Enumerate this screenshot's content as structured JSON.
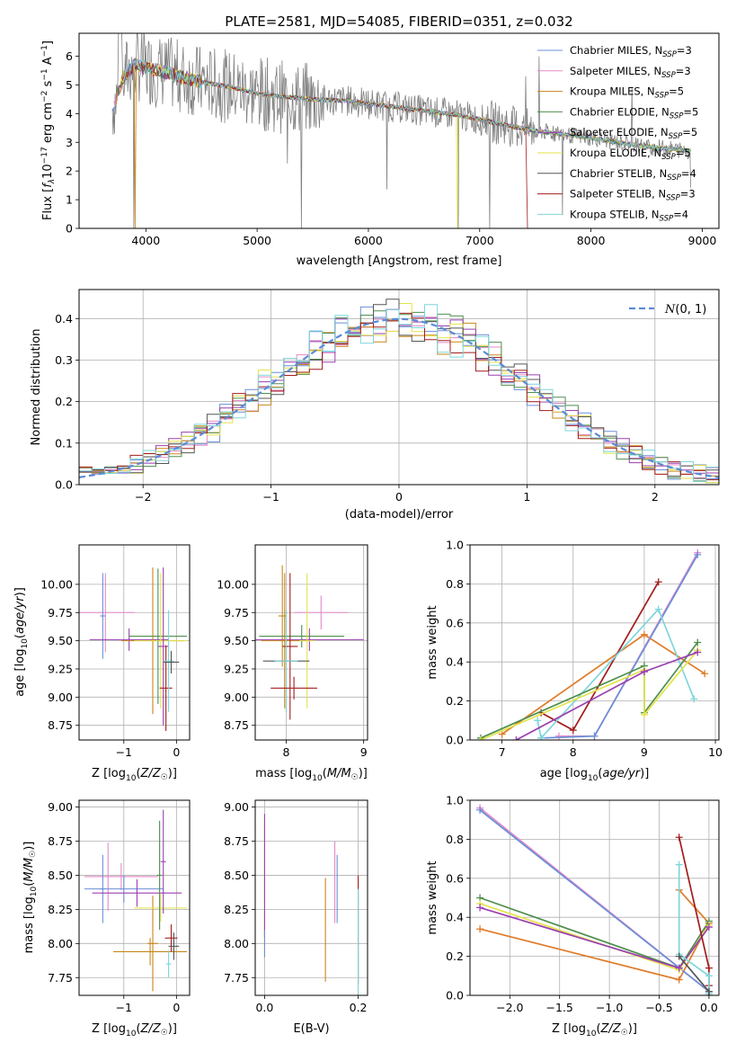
{
  "figure_title": "PLATE=2581, MJD=54085, FIBERID=0351, z=0.032",
  "colors": {
    "chabrier_miles": "#6a8fd8",
    "salpeter_miles": "#e58ac8",
    "kroupa_miles": "#c8861a",
    "chabrier_elodie": "#4f8f4f",
    "salpeter_elodie": "#9b3fb2",
    "kroupa_elodie": "#e3e34a",
    "chabrier_stelib": "#555555",
    "salpeter_stelib": "#a31c1c",
    "kroupa_stelib": "#7ed6dc",
    "data": "#808080",
    "normal": "#5b8bd6",
    "orange": "#e07b28",
    "lime": "#c4e84a"
  },
  "chart_data": [
    {
      "id": "spectrum",
      "type": "line",
      "xlabel": "wavelength [Angstrom, rest frame]",
      "ylabel": "Flux [f_λ 10^-17 erg cm^-2 s^-1 A^-1]",
      "xlim": [
        3400,
        9150
      ],
      "ylim": [
        0,
        6.8
      ],
      "xticks": [
        4000,
        5000,
        6000,
        7000,
        8000,
        9000
      ],
      "yticks": [
        0,
        1,
        2,
        3,
        4,
        5,
        6
      ],
      "grid": false,
      "legend_position": "top-right",
      "legend": [
        {
          "label": "Chabrier MILES, N_SSP=3",
          "color_key": "chabrier_miles"
        },
        {
          "label": "Salpeter MILES, N_SSP=3",
          "color_key": "salpeter_miles"
        },
        {
          "label": "Kroupa MILES, N_SSP=5",
          "color_key": "kroupa_miles"
        },
        {
          "label": "Chabrier ELODIE, N_SSP=5",
          "color_key": "chabrier_elodie"
        },
        {
          "label": "Salpeter ELODIE, N_SSP=5",
          "color_key": "salpeter_elodie"
        },
        {
          "label": "Kroupa ELODIE, N_SSP=5",
          "color_key": "kroupa_elodie"
        },
        {
          "label": "Chabrier STELIB, N_SSP=4",
          "color_key": "chabrier_stelib"
        },
        {
          "label": "Salpeter STELIB, N_SSP=3",
          "color_key": "salpeter_stelib"
        },
        {
          "label": "Kroupa STELIB, N_SSP=4",
          "color_key": "kroupa_stelib"
        }
      ],
      "model_continuum": {
        "x": [
          3700,
          3800,
          3900,
          4000,
          4200,
          4500,
          4800,
          5000,
          5200,
          5500,
          5800,
          6000,
          6300,
          6500,
          6800,
          7000,
          7300,
          7500,
          7800,
          8000,
          8500,
          8900
        ],
        "y": [
          4.2,
          5.3,
          5.7,
          5.6,
          5.4,
          5.1,
          4.9,
          4.7,
          4.6,
          4.5,
          4.45,
          4.35,
          4.2,
          4.1,
          3.95,
          3.8,
          3.55,
          3.4,
          3.25,
          3.15,
          2.85,
          2.7
        ]
      }
    },
    {
      "id": "residuals",
      "type": "line",
      "xlabel": "(data-model)/error",
      "ylabel": "Normed distribution",
      "xlim": [
        -2.5,
        2.5
      ],
      "ylim": [
        0,
        0.47
      ],
      "xticks": [
        -2,
        -1,
        0,
        1,
        2
      ],
      "yticks": [
        0.0,
        0.1,
        0.2,
        0.3,
        0.4
      ],
      "grid": true,
      "legend_position": "top-right",
      "legend": [
        {
          "label": "N(0,1)",
          "color_key": "normal"
        }
      ],
      "hist_bins": 50,
      "hist_range": [
        -2.5,
        2.5
      ]
    },
    {
      "id": "age_vs_z",
      "type": "scatter",
      "xlabel": "Z [log10(Z/Z☉)]",
      "ylabel": "age [log10(age/yr)]",
      "xlim": [
        -1.85,
        0.25
      ],
      "ylim": [
        8.62,
        10.35
      ],
      "xticks": [
        -1,
        0
      ],
      "yticks": [
        8.75,
        9.0,
        9.25,
        9.5,
        9.75,
        10.0
      ],
      "grid": true,
      "points": [
        {
          "x": -1.35,
          "y": 9.75,
          "xerr": 0.55,
          "yerr": 0.35,
          "color_key": "salpeter_miles"
        },
        {
          "x": -1.4,
          "y": 9.72,
          "xerr": 0.05,
          "yerr": 0.38,
          "color_key": "chabrier_miles"
        },
        {
          "x": -0.9,
          "y": 9.51,
          "xerr": 0.75,
          "yerr": 0.1,
          "color_key": "salpeter_elodie"
        },
        {
          "x": -0.45,
          "y": 9.5,
          "xerr": 0.6,
          "yerr": 0.65,
          "color_key": "kroupa_miles"
        },
        {
          "x": -0.35,
          "y": 9.54,
          "xerr": 0.55,
          "yerr": 0.6,
          "color_key": "chabrier_elodie"
        },
        {
          "x": -0.3,
          "y": 9.5,
          "xerr": 0.5,
          "yerr": 0.6,
          "color_key": "kroupa_elodie"
        },
        {
          "x": -0.25,
          "y": 9.45,
          "xerr": 0.1,
          "yerr": 0.7,
          "color_key": "salpeter_elodie"
        },
        {
          "x": -0.2,
          "y": 9.08,
          "xerr": 0.12,
          "yerr": 0.38,
          "color_key": "salpeter_stelib"
        },
        {
          "x": -0.15,
          "y": 9.32,
          "xerr": 0.1,
          "yerr": 0.45,
          "color_key": "kroupa_stelib"
        },
        {
          "x": -0.1,
          "y": 9.31,
          "xerr": 0.15,
          "yerr": 0.1,
          "color_key": "chabrier_stelib"
        }
      ]
    },
    {
      "id": "age_vs_mass",
      "type": "scatter",
      "xlabel": "mass [log10(M/M☉)]",
      "ylabel": "",
      "xlim": [
        7.6,
        9.05
      ],
      "ylim": [
        8.62,
        10.35
      ],
      "xticks": [
        8,
        9
      ],
      "yticks": [
        8.75,
        9.0,
        9.25,
        9.5,
        9.75,
        10.0
      ],
      "grid": true,
      "points": [
        {
          "x": 8.45,
          "y": 9.75,
          "xerr": 0.35,
          "yerr": 0.15,
          "color_key": "salpeter_miles"
        },
        {
          "x": 7.95,
          "y": 9.72,
          "xerr": 0.05,
          "yerr": 0.45,
          "color_key": "kroupa_miles"
        },
        {
          "x": 8.3,
          "y": 9.51,
          "xerr": 0.7,
          "yerr": 0.1,
          "color_key": "salpeter_elodie"
        },
        {
          "x": 7.98,
          "y": 9.5,
          "xerr": 0.3,
          "yerr": 0.6,
          "color_key": "kroupa_miles"
        },
        {
          "x": 8.2,
          "y": 9.54,
          "xerr": 0.55,
          "yerr": 0.1,
          "color_key": "chabrier_elodie"
        },
        {
          "x": 8.27,
          "y": 9.5,
          "xerr": 0.1,
          "yerr": 0.6,
          "color_key": "kroupa_elodie"
        },
        {
          "x": 8.05,
          "y": 9.45,
          "xerr": 0.1,
          "yerr": 0.65,
          "color_key": "salpeter_stelib"
        },
        {
          "x": 8.0,
          "y": 9.32,
          "xerr": 0.3,
          "yerr": 0.45,
          "color_key": "chabrier_stelib"
        },
        {
          "x": 8.0,
          "y": 9.32,
          "xerr": 0.15,
          "yerr": 0.45,
          "color_key": "kroupa_stelib"
        },
        {
          "x": 8.1,
          "y": 9.08,
          "xerr": 0.3,
          "yerr": 0.1,
          "color_key": "salpeter_stelib"
        }
      ]
    },
    {
      "id": "weight_vs_age",
      "type": "line",
      "xlabel": "age [log10(age/yr)]",
      "ylabel": "mass weight",
      "xlim": [
        6.55,
        10.05
      ],
      "ylim": [
        0,
        1.0
      ],
      "xticks": [
        7,
        8,
        9,
        10
      ],
      "yticks": [
        0.0,
        0.2,
        0.4,
        0.6,
        0.8,
        1.0
      ],
      "grid": true,
      "series": [
        {
          "color_key": "orange",
          "x": [
            7.0,
            9.0,
            9.85
          ],
          "y": [
            0.03,
            0.54,
            0.34
          ]
        },
        {
          "color_key": "salpeter_miles",
          "x": [
            7.8,
            8.3,
            9.75
          ],
          "y": [
            0.02,
            0.02,
            0.96
          ]
        },
        {
          "color_key": "chabrier_miles",
          "x": [
            7.55,
            8.3,
            9.75
          ],
          "y": [
            0.01,
            0.02,
            0.95
          ]
        },
        {
          "color_key": "salpeter_stelib",
          "x": [
            7.55,
            8.0,
            9.2
          ],
          "y": [
            0.14,
            0.05,
            0.81
          ]
        },
        {
          "color_key": "kroupa_stelib",
          "x": [
            7.5,
            7.55,
            9.2,
            9.7
          ],
          "y": [
            0.1,
            0.01,
            0.67,
            0.21
          ]
        },
        {
          "color_key": "chabrier_elodie",
          "x": [
            6.7,
            9.0,
            9.0,
            9.75
          ],
          "y": [
            0.01,
            0.38,
            0.14,
            0.5
          ]
        },
        {
          "color_key": "kroupa_elodie",
          "x": [
            6.7,
            9.0,
            9.0,
            9.75
          ],
          "y": [
            0.0,
            0.36,
            0.13,
            0.46
          ]
        },
        {
          "color_key": "salpeter_elodie",
          "x": [
            7.2,
            9.0,
            9.75
          ],
          "y": [
            0.0,
            0.35,
            0.45
          ]
        }
      ]
    },
    {
      "id": "mass_vs_z",
      "type": "scatter",
      "xlabel": "Z [log10(Z/Z☉)]",
      "ylabel": "mass [log10(M/M☉)]",
      "xlim": [
        -1.85,
        0.25
      ],
      "ylim": [
        7.62,
        9.05
      ],
      "xticks": [
        -1,
        0
      ],
      "yticks": [
        7.75,
        8.0,
        8.25,
        8.5,
        8.75,
        9.0
      ],
      "grid": true,
      "points": [
        {
          "x": -1.05,
          "y": 8.49,
          "xerr": 0.7,
          "yerr": 0.1,
          "color_key": "salpeter_miles"
        },
        {
          "x": -1.3,
          "y": 8.49,
          "xerr": 0.05,
          "yerr": 0.25,
          "color_key": "salpeter_miles"
        },
        {
          "x": -1.0,
          "y": 8.4,
          "xerr": 0.75,
          "yerr": 0.1,
          "color_key": "chabrier_miles"
        },
        {
          "x": -1.4,
          "y": 8.4,
          "xerr": 0.05,
          "yerr": 0.25,
          "color_key": "chabrier_miles"
        },
        {
          "x": -0.75,
          "y": 8.37,
          "xerr": 0.85,
          "yerr": 0.1,
          "color_key": "salpeter_elodie"
        },
        {
          "x": -0.5,
          "y": 7.94,
          "xerr": 0.7,
          "yerr": 0.1,
          "color_key": "kroupa_miles"
        },
        {
          "x": -0.45,
          "y": 8.0,
          "xerr": 0.1,
          "yerr": 0.35,
          "color_key": "kroupa_miles"
        },
        {
          "x": -0.3,
          "y": 8.26,
          "xerr": 0.5,
          "yerr": 0.1,
          "color_key": "kroupa_elodie"
        },
        {
          "x": -0.32,
          "y": 8.5,
          "xerr": 0.05,
          "yerr": 0.4,
          "color_key": "chabrier_elodie"
        },
        {
          "x": -0.25,
          "y": 8.6,
          "xerr": 0.05,
          "yerr": 0.38,
          "color_key": "salpeter_elodie"
        },
        {
          "x": -0.1,
          "y": 8.04,
          "xerr": 0.12,
          "yerr": 0.1,
          "color_key": "salpeter_stelib"
        },
        {
          "x": -0.05,
          "y": 7.98,
          "xerr": 0.1,
          "yerr": 0.1,
          "color_key": "chabrier_stelib"
        },
        {
          "x": -0.15,
          "y": 7.85,
          "xerr": 0.05,
          "yerr": 0.1,
          "color_key": "kroupa_stelib"
        }
      ]
    },
    {
      "id": "mass_vs_ebv",
      "type": "scatter",
      "xlabel": "E(B-V)",
      "ylabel": "",
      "xlim": [
        -0.02,
        0.22
      ],
      "ylim": [
        7.62,
        9.05
      ],
      "xticks": [
        0.0,
        0.2
      ],
      "yticks": [
        7.75,
        8.0,
        8.25,
        8.5,
        8.75,
        9.0
      ],
      "grid": true,
      "points": [
        {
          "x": 0.0,
          "y": 8.4,
          "xerr": 0,
          "yerr": 0.5,
          "color_key": "kroupa_elodie"
        },
        {
          "x": 0.0,
          "y": 8.5,
          "xerr": 0,
          "yerr": 0.45,
          "color_key": "salpeter_elodie"
        },
        {
          "x": 0.0,
          "y": 8.0,
          "xerr": 0,
          "yerr": 0.1,
          "color_key": "chabrier_miles"
        },
        {
          "x": 0.13,
          "y": 8.1,
          "xerr": 0,
          "yerr": 0.38,
          "color_key": "kroupa_miles"
        },
        {
          "x": 0.15,
          "y": 8.45,
          "xerr": 0,
          "yerr": 0.3,
          "color_key": "salpeter_miles"
        },
        {
          "x": 0.155,
          "y": 8.4,
          "xerr": 0,
          "yerr": 0.25,
          "color_key": "chabrier_miles"
        },
        {
          "x": 0.2,
          "y": 8.1,
          "xerr": 0,
          "yerr": 0.4,
          "color_key": "salpeter_stelib"
        },
        {
          "x": 0.2,
          "y": 8.0,
          "xerr": 0,
          "yerr": 0.4,
          "color_key": "kroupa_stelib"
        }
      ]
    },
    {
      "id": "weight_vs_z",
      "type": "line",
      "xlabel": "Z [log10(Z/Z☉)]",
      "ylabel": "mass weight",
      "xlim": [
        -2.4,
        0.1
      ],
      "ylim": [
        0,
        1.0
      ],
      "xticks": [
        -2.0,
        -1.5,
        -1.0,
        -0.5,
        0.0
      ],
      "yticks": [
        0.0,
        0.2,
        0.4,
        0.6,
        0.8,
        1.0
      ],
      "grid": true,
      "series": [
        {
          "color_key": "orange",
          "x": [
            -2.3,
            -0.3,
            0.0,
            -0.3
          ],
          "y": [
            0.34,
            0.08,
            0.37,
            0.54
          ]
        },
        {
          "color_key": "salpeter_miles",
          "x": [
            -2.3,
            0.0
          ],
          "y": [
            0.96,
            0.02
          ]
        },
        {
          "color_key": "chabrier_miles",
          "x": [
            -2.3,
            0.0
          ],
          "y": [
            0.95,
            0.02
          ]
        },
        {
          "color_key": "chabrier_elodie",
          "x": [
            -2.3,
            -0.3,
            0.0
          ],
          "y": [
            0.5,
            0.14,
            0.38
          ]
        },
        {
          "color_key": "kroupa_elodie",
          "x": [
            -2.3,
            -0.3,
            0.0
          ],
          "y": [
            0.47,
            0.13,
            0.36
          ]
        },
        {
          "color_key": "salpeter_elodie",
          "x": [
            -2.3,
            -0.3,
            0.0
          ],
          "y": [
            0.45,
            0.14,
            0.35
          ]
        },
        {
          "color_key": "salpeter_stelib",
          "x": [
            -0.3,
            0.0,
            0.0
          ],
          "y": [
            0.81,
            0.14,
            0.05
          ]
        },
        {
          "color_key": "kroupa_stelib",
          "x": [
            -0.3,
            -0.3,
            0.0,
            0.0
          ],
          "y": [
            0.67,
            0.21,
            0.1,
            0.01
          ]
        },
        {
          "color_key": "chabrier_stelib",
          "x": [
            -0.3,
            0.0,
            0.0
          ],
          "y": [
            0.2,
            0.02,
            0.0
          ]
        }
      ]
    }
  ]
}
